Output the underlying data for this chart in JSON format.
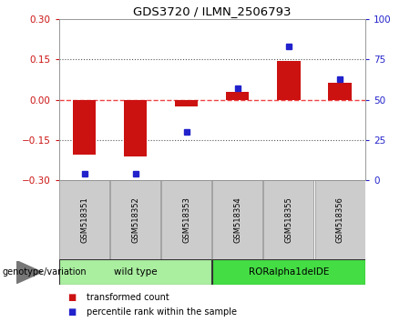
{
  "title": "GDS3720 / ILMN_2506793",
  "samples": [
    "GSM518351",
    "GSM518352",
    "GSM518353",
    "GSM518354",
    "GSM518355",
    "GSM518356"
  ],
  "bar_values": [
    -0.205,
    -0.21,
    -0.025,
    0.03,
    0.145,
    0.065
  ],
  "scatter_values": [
    4,
    4,
    30,
    57,
    83,
    63
  ],
  "ylim_left": [
    -0.3,
    0.3
  ],
  "ylim_right": [
    0,
    100
  ],
  "yticks_left": [
    -0.3,
    -0.15,
    0,
    0.15,
    0.3
  ],
  "yticks_right": [
    0,
    25,
    50,
    75,
    100
  ],
  "bar_color": "#cc1111",
  "scatter_color": "#2222cc",
  "zero_line_color": "#ee4444",
  "dotted_line_color": "#555555",
  "groups": [
    {
      "label": "wild type",
      "indices": [
        0,
        1,
        2
      ],
      "color": "#aaeea0"
    },
    {
      "label": "RORalpha1delDE",
      "indices": [
        3,
        4,
        5
      ],
      "color": "#44dd44"
    }
  ],
  "group_label": "genotype/variation",
  "legend_bar_label": "transformed count",
  "legend_scatter_label": "percentile rank within the sample",
  "tick_color_left": "#cc1111",
  "tick_color_right": "#2222cc",
  "background_color": "#ffffff"
}
